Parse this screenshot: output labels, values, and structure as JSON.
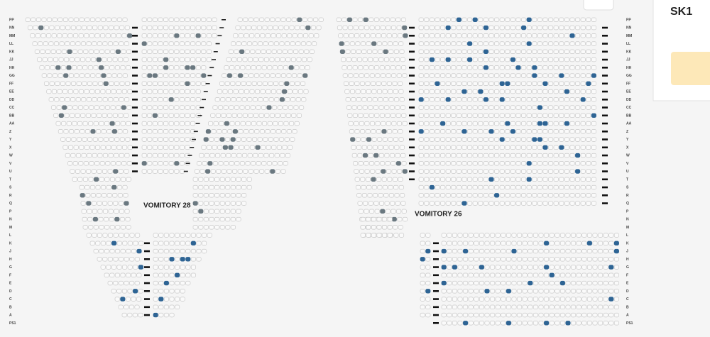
{
  "row_labels": [
    "PP",
    "NN",
    "MM",
    "LL",
    "KK",
    "JJ",
    "HH",
    "GG",
    "FF",
    "EE",
    "DD",
    "CC",
    "BB",
    "AA",
    "Z",
    "Y",
    "X",
    "W",
    "V",
    "U",
    "T",
    "S",
    "R",
    "Q",
    "P",
    "N",
    "M",
    "L",
    "K",
    "J",
    "H",
    "G",
    "F",
    "E",
    "D",
    "C",
    "B",
    "A",
    "PS1"
  ],
  "sections": [
    {
      "label": "VOMITORY 28"
    },
    {
      "label": "VOMITORY 26"
    }
  ],
  "panel": {
    "title": "SK1"
  }
}
